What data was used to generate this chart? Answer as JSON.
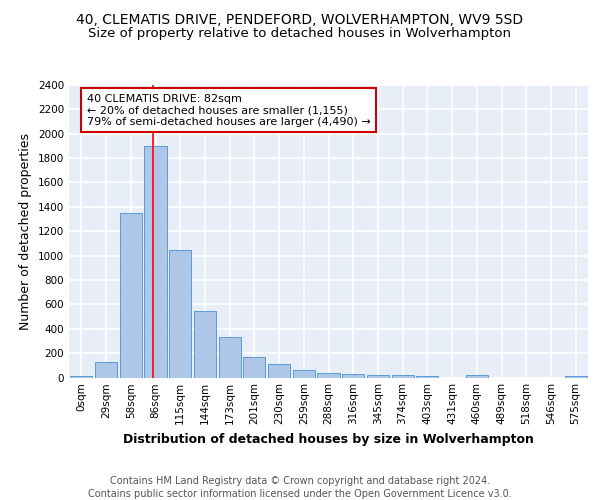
{
  "title_line1": "40, CLEMATIS DRIVE, PENDEFORD, WOLVERHAMPTON, WV9 5SD",
  "title_line2": "Size of property relative to detached houses in Wolverhampton",
  "xlabel": "Distribution of detached houses by size in Wolverhampton",
  "ylabel": "Number of detached properties",
  "footer_line1": "Contains HM Land Registry data © Crown copyright and database right 2024.",
  "footer_line2": "Contains public sector information licensed under the Open Government Licence v3.0.",
  "bar_labels": [
    "0sqm",
    "29sqm",
    "58sqm",
    "86sqm",
    "115sqm",
    "144sqm",
    "173sqm",
    "201sqm",
    "230sqm",
    "259sqm",
    "288sqm",
    "316sqm",
    "345sqm",
    "374sqm",
    "403sqm",
    "431sqm",
    "460sqm",
    "489sqm",
    "518sqm",
    "546sqm",
    "575sqm"
  ],
  "bar_values": [
    15,
    125,
    1350,
    1900,
    1045,
    545,
    335,
    165,
    108,
    62,
    40,
    28,
    22,
    18,
    12,
    0,
    18,
    0,
    0,
    0,
    15
  ],
  "bar_color": "#aec6e8",
  "bar_edge_color": "#5b9bd5",
  "annotation_text": "40 CLEMATIS DRIVE: 82sqm\n← 20% of detached houses are smaller (1,155)\n79% of semi-detached houses are larger (4,490) →",
  "annotation_box_color": "#ffffff",
  "annotation_box_edge": "#cc0000",
  "ylim": [
    0,
    2400
  ],
  "yticks": [
    0,
    200,
    400,
    600,
    800,
    1000,
    1200,
    1400,
    1600,
    1800,
    2000,
    2200,
    2400
  ],
  "background_color": "#e8eef7",
  "grid_color": "#ffffff",
  "title_fontsize": 10,
  "subtitle_fontsize": 9.5,
  "axis_label_fontsize": 9,
  "tick_fontsize": 7.5,
  "footer_fontsize": 7,
  "red_line_x": 2.88
}
